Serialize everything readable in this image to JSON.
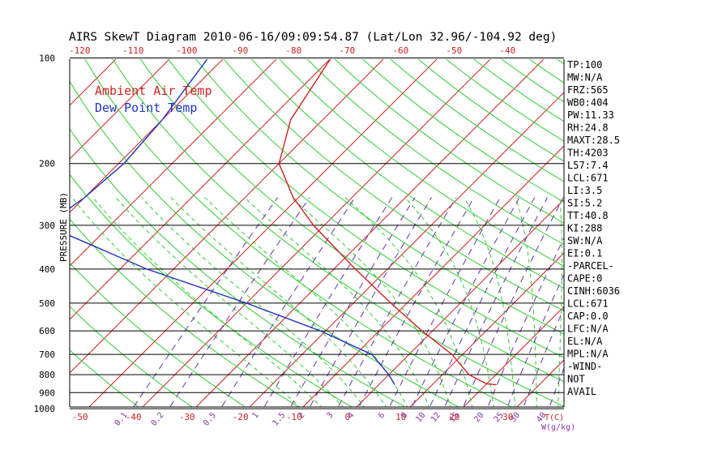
{
  "chart_data": {
    "type": "line",
    "title": "AIRS SkewT Diagram 2010-06-16/09:09:54.87 (Lat/Lon 32.96/-104.92 deg)",
    "ylabel": "PRESSURE (MB)",
    "x_bottom_unit": "T(C)",
    "mixing_ratio_unit": "W(g/kg)",
    "pressure_ticks": [
      100,
      200,
      300,
      400,
      500,
      600,
      700,
      800,
      900,
      1000
    ],
    "temp_ticks_bottom": [
      -50,
      -40,
      -30,
      -20,
      -10,
      0,
      10,
      20,
      30
    ],
    "temp_ticks_top": [
      -120,
      -110,
      -100,
      -90,
      -80,
      -70,
      -60,
      -50,
      -40
    ],
    "mixing_ratio_labels": [
      "0.1",
      "0.2",
      "0.5",
      "1",
      "1.5",
      "2",
      "3",
      "4",
      "6",
      "8",
      "10",
      "12",
      "15",
      "20",
      "25",
      "30",
      "40"
    ],
    "legend": {
      "placement": "top-left",
      "entries": [
        {
          "label": "Ambient Air Temp",
          "color": "#cc2222"
        },
        {
          "label": "Dew Point Temp",
          "color": "#2233bb"
        }
      ]
    },
    "series": [
      {
        "name": "Ambient Air Temp",
        "color": "#cc2222",
        "points": [
          {
            "p": 100,
            "t": -70
          },
          {
            "p": 150,
            "t": -66
          },
          {
            "p": 200,
            "t": -60
          },
          {
            "p": 250,
            "t": -51
          },
          {
            "p": 300,
            "t": -42
          },
          {
            "p": 400,
            "t": -26
          },
          {
            "p": 500,
            "t": -13
          },
          {
            "p": 600,
            "t": -2
          },
          {
            "p": 700,
            "t": 8
          },
          {
            "p": 800,
            "t": 15
          },
          {
            "p": 850,
            "t": 20
          },
          {
            "p": 855,
            "t": 22
          }
        ]
      },
      {
        "name": "Dew Point Temp",
        "color": "#2233bb",
        "points": [
          {
            "p": 100,
            "t": -93
          },
          {
            "p": 150,
            "t": -90
          },
          {
            "p": 200,
            "t": -89
          },
          {
            "p": 250,
            "t": -90
          },
          {
            "p": 300,
            "t": -92
          },
          {
            "p": 400,
            "t": -65
          },
          {
            "p": 500,
            "t": -40
          },
          {
            "p": 600,
            "t": -21
          },
          {
            "p": 700,
            "t": -7
          },
          {
            "p": 800,
            "t": 0
          },
          {
            "p": 855,
            "t": 3
          }
        ]
      }
    ],
    "indices": [
      "TP:100",
      "MW:N/A",
      "FRZ:565",
      "WB0:404",
      "PW:11.33",
      "RH:24.8",
      "MAXT:28.5",
      "TH:4203",
      "L57:7.4",
      "LCL:671",
      "LI:3.5",
      "SI:5.2",
      "TT:40.8",
      "KI:288",
      "SW:N/A",
      "EI:0.1",
      "-PARCEL-",
      "CAPE:0",
      "CINH:6036",
      "LCL:671",
      "CAP:0.0",
      "LFC:N/A",
      "EL:N/A",
      "MPL:N/A",
      "-WIND-",
      "NOT",
      "AVAIL"
    ],
    "colors": {
      "temp": "#cc2222",
      "dew": "#2233bb",
      "dry_adiabat": "#33cc33",
      "moist_adiabat": "#33cc33",
      "isotherm": "#cc2222",
      "mixing_ratio": "#6633aa",
      "tick_label": "#cc2222",
      "mixing_label": "#8833aa",
      "frame": "#000000"
    }
  }
}
